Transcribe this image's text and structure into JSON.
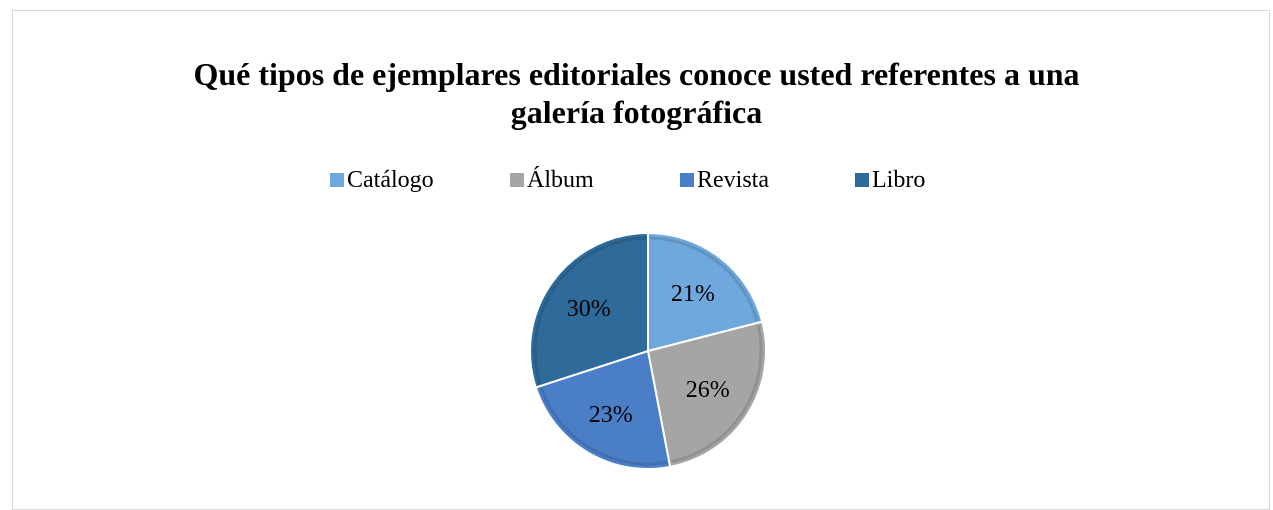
{
  "chart_data": {
    "type": "pie",
    "title": "Qué tipos de ejemplares editoriales conoce usted referentes a una galería fotográfica",
    "title_lines": [
      "Qué tipos de ejemplares editoriales conoce usted referentes a una",
      "galería fotográfica"
    ],
    "legend_position": "top",
    "categories": [
      "Catálogo",
      "Álbum",
      "Revista",
      "Libro"
    ],
    "values": [
      21,
      26,
      23,
      30
    ],
    "labels": [
      "21%",
      "26%",
      "23%",
      "30%"
    ],
    "colors": [
      "#6fa8dc",
      "#a5a5a5",
      "#4a7fc8",
      "#2e6b9a"
    ]
  }
}
